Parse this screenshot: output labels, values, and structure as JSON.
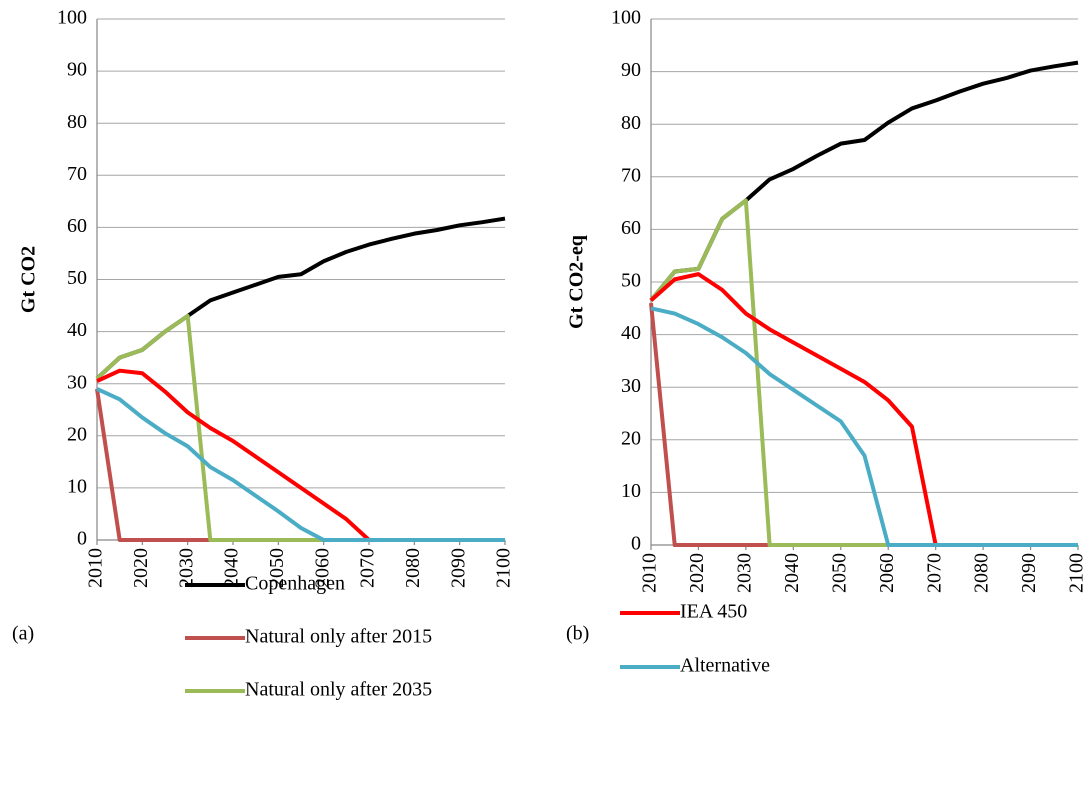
{
  "chart_data": [
    {
      "type": "line",
      "label": "(a)",
      "ylabel": "Gt CO2",
      "x": [
        2010,
        2015,
        2020,
        2025,
        2030,
        2035,
        2040,
        2045,
        2050,
        2055,
        2060,
        2065,
        2070,
        2075,
        2080,
        2085,
        2090,
        2095,
        2100
      ],
      "xlim": [
        2010,
        2100
      ],
      "xticks": [
        2010,
        2020,
        2030,
        2040,
        2050,
        2060,
        2070,
        2080,
        2090,
        2100
      ],
      "ylim": [
        0,
        100
      ],
      "yticks": [
        0,
        10,
        20,
        30,
        40,
        50,
        60,
        70,
        80,
        90,
        100
      ],
      "grid": true,
      "series": [
        {
          "name": "Copenhagen",
          "color": "#000000",
          "values": [
            31,
            35,
            36.5,
            40,
            43,
            46,
            47.5,
            49,
            50.5,
            51,
            53.5,
            55.3,
            56.7,
            57.8,
            58.8,
            59.5,
            60.4,
            61,
            61.7
          ]
        },
        {
          "name": "Natural only after 2015",
          "color": "#c0504d",
          "values": [
            29,
            0,
            0,
            0,
            0,
            0,
            0,
            0,
            0,
            0,
            0,
            0,
            0,
            0,
            0,
            0,
            0,
            0,
            0
          ]
        },
        {
          "name": "Natural only after 2035",
          "color": "#9bbb59",
          "values": [
            31,
            35,
            36.5,
            40,
            43,
            0,
            0,
            0,
            0,
            0,
            0,
            0,
            0,
            0,
            0,
            0,
            0,
            0,
            0
          ]
        },
        {
          "name": "IEA 450",
          "color": "#ff0000",
          "values": [
            30.5,
            32.5,
            32,
            28.5,
            24.5,
            21.5,
            19,
            16,
            13,
            10,
            7,
            4,
            0,
            0,
            0,
            0,
            0,
            0,
            0
          ]
        },
        {
          "name": "Alternative",
          "color": "#4bacc6",
          "values": [
            29,
            27,
            23.5,
            20.5,
            18,
            14,
            11.5,
            8.5,
            5.5,
            2.3,
            0,
            0,
            0,
            0,
            0,
            0,
            0,
            0,
            0
          ]
        }
      ]
    },
    {
      "type": "line",
      "label": "(b)",
      "ylabel": "Gt CO2-eq",
      "x": [
        2010,
        2015,
        2020,
        2025,
        2030,
        2035,
        2040,
        2045,
        2050,
        2055,
        2060,
        2065,
        2070,
        2075,
        2080,
        2085,
        2090,
        2095,
        2100
      ],
      "xlim": [
        2010,
        2100
      ],
      "xticks": [
        2010,
        2020,
        2030,
        2040,
        2050,
        2060,
        2070,
        2080,
        2090,
        2100
      ],
      "ylim": [
        0,
        100
      ],
      "yticks": [
        0,
        10,
        20,
        30,
        40,
        50,
        60,
        70,
        80,
        90,
        100
      ],
      "grid": true,
      "series": [
        {
          "name": "Copenhagen",
          "color": "#000000",
          "values": [
            46.5,
            52,
            52.5,
            62,
            65.5,
            69.5,
            71.5,
            74,
            76.3,
            77,
            80.3,
            83,
            84.5,
            86.2,
            87.7,
            88.8,
            90.2,
            91,
            91.7
          ]
        },
        {
          "name": "Natural only after 2015",
          "color": "#c0504d",
          "values": [
            46,
            0,
            0,
            0,
            0,
            0,
            0,
            0,
            0,
            0,
            0,
            0,
            0,
            0,
            0,
            0,
            0,
            0,
            0
          ]
        },
        {
          "name": "Natural only after 2035",
          "color": "#9bbb59",
          "values": [
            46.5,
            52,
            52.5,
            62,
            65.5,
            0,
            0,
            0,
            0,
            0,
            0,
            0,
            0,
            0,
            0,
            0,
            0,
            0,
            0
          ]
        },
        {
          "name": "IEA 450",
          "color": "#ff0000",
          "values": [
            46.5,
            50.5,
            51.5,
            48.5,
            44,
            41,
            38.5,
            36,
            33.5,
            31,
            27.5,
            22.5,
            0,
            0,
            0,
            0,
            0,
            0,
            0
          ]
        },
        {
          "name": "Alternative",
          "color": "#4bacc6",
          "values": [
            45,
            44,
            42,
            39.5,
            36.5,
            32.5,
            29.5,
            26.5,
            23.5,
            17,
            0,
            0,
            0,
            0,
            0,
            0,
            0,
            0,
            0
          ]
        }
      ]
    }
  ]
}
